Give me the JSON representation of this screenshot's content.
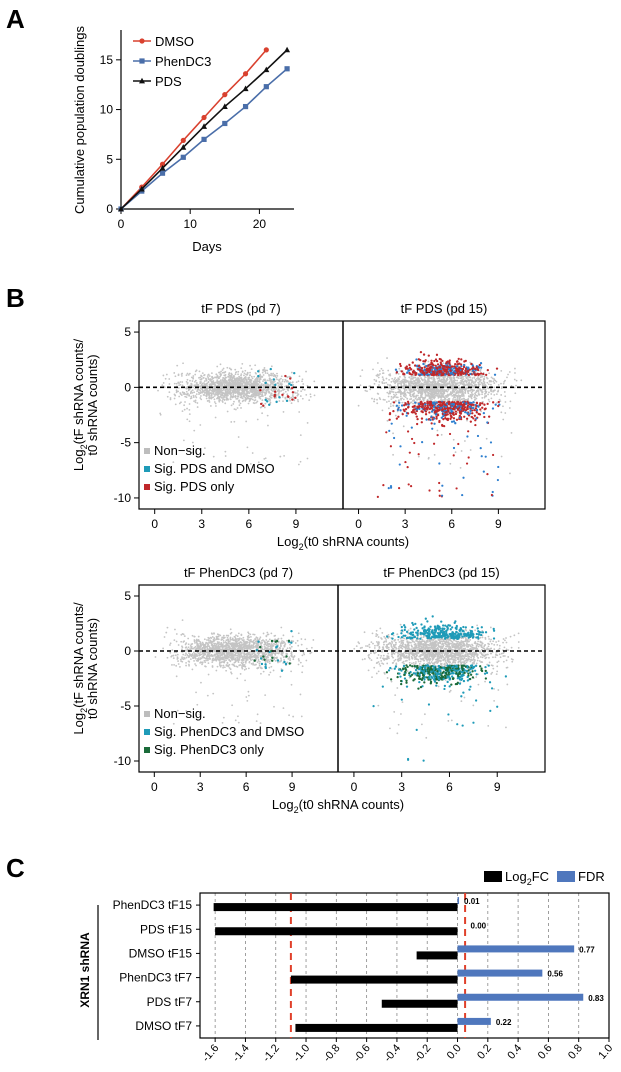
{
  "panel_labels": {
    "a": "A",
    "b": "B",
    "c": "C"
  },
  "chart_data": [
    {
      "id": "A",
      "type": "line",
      "xlabel": "Days",
      "ylabel": "Cumulative population doublings",
      "xlim": [
        0,
        25
      ],
      "ylim": [
        0,
        18
      ],
      "xticks": [
        "0",
        "10",
        "20"
      ],
      "yticks": [
        "0",
        "5",
        "10",
        "15"
      ],
      "legend_position": "top-left",
      "series": [
        {
          "name": "DMSO",
          "color": "#d9412f",
          "marker": "circle",
          "x": [
            0,
            3,
            6,
            9,
            12,
            15,
            18,
            21
          ],
          "y": [
            0,
            2.2,
            4.5,
            6.9,
            9.2,
            11.5,
            13.6,
            16.0
          ]
        },
        {
          "name": "PhenDC3",
          "color": "#4a6ea9",
          "marker": "square",
          "x": [
            0,
            3,
            6,
            9,
            12,
            15,
            18,
            21,
            24
          ],
          "y": [
            0,
            1.8,
            3.6,
            5.2,
            7.0,
            8.6,
            10.3,
            12.3,
            14.1
          ]
        },
        {
          "name": "PDS",
          "color": "#111111",
          "marker": "triangle",
          "x": [
            0,
            3,
            6,
            9,
            12,
            15,
            18,
            21,
            24
          ],
          "y": [
            0,
            2.0,
            4.1,
            6.2,
            8.3,
            10.3,
            12.1,
            14.0,
            16.0
          ]
        }
      ]
    },
    {
      "id": "B-top",
      "type": "scatter",
      "titles": [
        "tF PDS (pd 7)",
        "tF PDS (pd 15)"
      ],
      "ylabel": "Log2(tF shRNA counts/ t0 shRNA counts)",
      "ylabel_lines": [
        "Log",
        "2",
        "(tF shRNA counts/",
        "t0 shRNA counts)"
      ],
      "xlabel_parts": [
        "Log",
        "2",
        "(t0 shRNA counts)"
      ],
      "xticks": [
        "0",
        "3",
        "6",
        "9"
      ],
      "yticks": [
        "5",
        "0",
        "-5",
        "-10"
      ],
      "xlim": [
        -1,
        12
      ],
      "ylim": [
        -11,
        6
      ],
      "legend_position": "bottom-left",
      "legend": [
        {
          "label": "Non−sig.",
          "color": "#bdbdbd"
        },
        {
          "label": "Sig. PDS and DMSO",
          "color": "#1f9bb8"
        },
        {
          "label": "Sig. PDS only",
          "color": "#c0282a"
        }
      ]
    },
    {
      "id": "B-bottom",
      "type": "scatter",
      "titles": [
        "tF PhenDC3 (pd 7)",
        "tF PhenDC3 (pd 15)"
      ],
      "ylabel": "Log2(tF shRNA counts/ t0 shRNA counts)",
      "ylabel_lines": [
        "Log",
        "2",
        "(tF shRNA counts/",
        "t0 shRNA counts)"
      ],
      "xlabel_parts": [
        "Log",
        "2",
        "(t0 shRNA counts)"
      ],
      "xticks": [
        "0",
        "3",
        "6",
        "9"
      ],
      "yticks": [
        "5",
        "0",
        "-5",
        "-10"
      ],
      "xlim": [
        -1,
        12
      ],
      "ylim": [
        -11,
        6
      ],
      "legend_position": "bottom-left",
      "legend": [
        {
          "label": "Non−sig.",
          "color": "#bdbdbd"
        },
        {
          "label": "Sig. PhenDC3 and DMSO",
          "color": "#1f9bb8"
        },
        {
          "label": "Sig. PhenDC3 only",
          "color": "#1a6b3a"
        }
      ]
    },
    {
      "id": "C",
      "type": "bar",
      "orientation": "horizontal",
      "ylabel": "XRN1 shRNA",
      "categories": [
        "PhenDC3 tF15",
        "PDS tF15",
        "DMSO tF15",
        "PhenDC3 tF7",
        "PDS tF7",
        "DMSO tF7"
      ],
      "xlim": [
        -1.7,
        1.0
      ],
      "xticks": [
        "-1.6",
        "-1.4",
        "-1.2",
        "-1.0",
        "-0.8",
        "-0.6",
        "-0.4",
        "-0.2",
        "0.0",
        "0.2",
        "0.4",
        "0.6",
        "0.8",
        "1.0"
      ],
      "tick_values": [
        -1.6,
        -1.4,
        -1.2,
        -1.0,
        -0.8,
        -0.6,
        -0.4,
        -0.2,
        0.0,
        0.2,
        0.4,
        0.6,
        0.8,
        1.0
      ],
      "threshold_lines": [
        -1.1,
        0.05
      ],
      "legend_position": "top-right",
      "legend": [
        {
          "label_parts": [
            "Log",
            "2",
            "FC"
          ],
          "color": "#000000"
        },
        {
          "label": "FDR",
          "color": "#4f77bd"
        }
      ],
      "series": [
        {
          "name": "Log2FC",
          "color": "#000000",
          "values": [
            -1.61,
            -1.6,
            -0.27,
            -1.1,
            -0.5,
            -1.07
          ]
        },
        {
          "name": "FDR",
          "color": "#4f77bd",
          "values": [
            0.01,
            0.0,
            0.77,
            0.56,
            0.83,
            0.22
          ]
        }
      ],
      "fdr_labels": [
        "0.01",
        "0.00",
        "0.77",
        "0.56",
        "0.83",
        "0.22"
      ]
    }
  ]
}
